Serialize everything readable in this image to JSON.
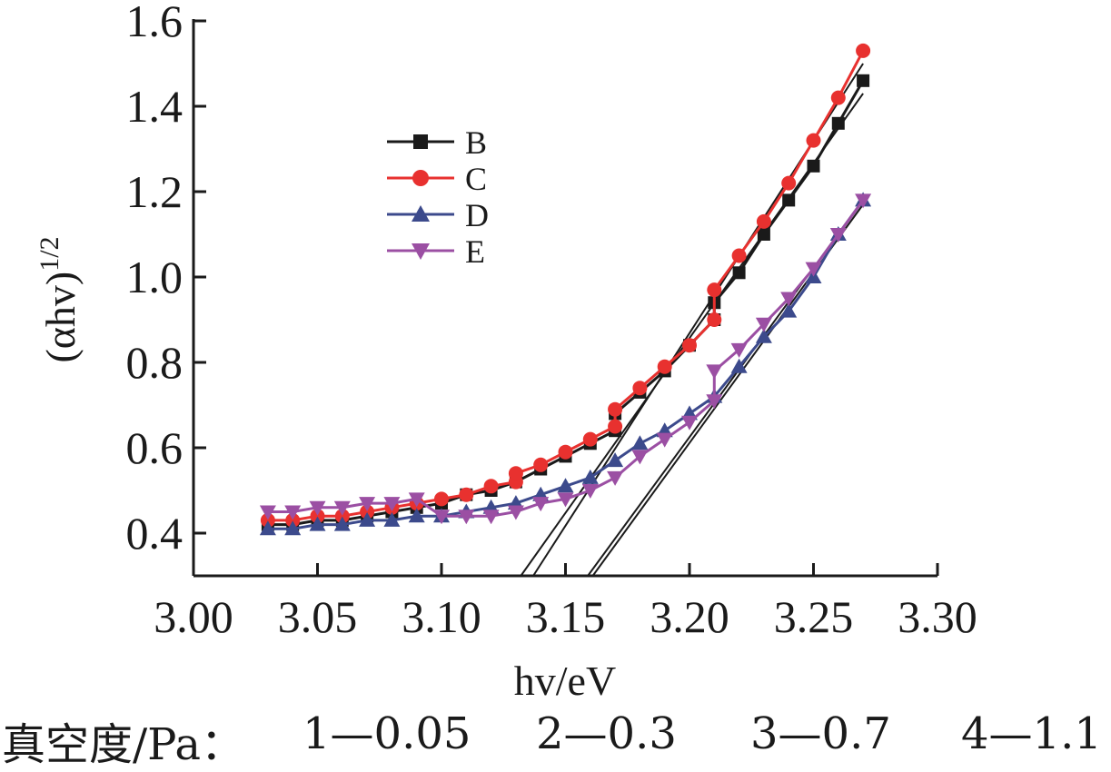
{
  "chart_data": {
    "type": "line",
    "xlabel": "hv/eV",
    "ylabel": "(αhv)",
    "ylabel_sup": "1/2",
    "xlim": [
      3.0,
      3.3
    ],
    "ylim": [
      0.3,
      1.6
    ],
    "x_ticks": [
      "3.00",
      "3.05",
      "3.10",
      "3.15",
      "3.20",
      "3.25",
      "3.30"
    ],
    "y_ticks": [
      "0.4",
      "0.6",
      "0.8",
      "1.0",
      "1.2",
      "1.4",
      "1.6"
    ],
    "legend_position": "upper-left",
    "series": [
      {
        "name": "B",
        "color": "#1a1a1a",
        "marker": "square",
        "x": [
          3.03,
          3.04,
          3.05,
          3.06,
          3.07,
          3.08,
          3.09,
          3.1,
          3.11,
          3.12,
          3.13,
          3.14,
          3.15,
          3.16,
          3.17,
          3.17,
          3.18,
          3.19,
          3.2,
          3.21,
          3.21,
          3.22,
          3.23,
          3.24,
          3.25,
          3.26,
          3.27
        ],
        "y": [
          0.42,
          0.42,
          0.43,
          0.43,
          0.44,
          0.45,
          0.46,
          0.47,
          0.49,
          0.5,
          0.52,
          0.55,
          0.58,
          0.61,
          0.64,
          0.68,
          0.73,
          0.78,
          0.84,
          0.9,
          0.94,
          1.01,
          1.1,
          1.18,
          1.26,
          1.36,
          1.46
        ]
      },
      {
        "name": "C",
        "color": "#e8312f",
        "marker": "circle",
        "x": [
          3.03,
          3.04,
          3.05,
          3.06,
          3.07,
          3.08,
          3.09,
          3.1,
          3.11,
          3.12,
          3.13,
          3.13,
          3.14,
          3.15,
          3.16,
          3.17,
          3.17,
          3.18,
          3.19,
          3.2,
          3.21,
          3.21,
          3.22,
          3.23,
          3.24,
          3.25,
          3.26,
          3.27
        ],
        "y": [
          0.43,
          0.43,
          0.44,
          0.44,
          0.45,
          0.46,
          0.47,
          0.48,
          0.49,
          0.51,
          0.52,
          0.54,
          0.56,
          0.59,
          0.62,
          0.65,
          0.69,
          0.74,
          0.79,
          0.84,
          0.9,
          0.97,
          1.05,
          1.13,
          1.22,
          1.32,
          1.42,
          1.53
        ]
      },
      {
        "name": "D",
        "color": "#3c4a8c",
        "marker": "triangle-up",
        "x": [
          3.03,
          3.04,
          3.05,
          3.06,
          3.07,
          3.08,
          3.09,
          3.1,
          3.11,
          3.12,
          3.13,
          3.14,
          3.15,
          3.16,
          3.17,
          3.18,
          3.19,
          3.2,
          3.21,
          3.22,
          3.23,
          3.24,
          3.25,
          3.26,
          3.27
        ],
        "y": [
          0.41,
          0.41,
          0.42,
          0.42,
          0.43,
          0.43,
          0.44,
          0.44,
          0.45,
          0.46,
          0.47,
          0.49,
          0.51,
          0.53,
          0.57,
          0.61,
          0.64,
          0.68,
          0.72,
          0.79,
          0.86,
          0.92,
          1.0,
          1.1,
          1.18
        ]
      },
      {
        "name": "E",
        "color": "#9b4fa3",
        "marker": "triangle-down",
        "x": [
          3.03,
          3.04,
          3.05,
          3.06,
          3.07,
          3.08,
          3.09,
          3.1,
          3.11,
          3.12,
          3.13,
          3.14,
          3.15,
          3.16,
          3.17,
          3.18,
          3.19,
          3.2,
          3.21,
          3.21,
          3.22,
          3.23,
          3.24,
          3.25,
          3.26,
          3.27
        ],
        "y": [
          0.45,
          0.45,
          0.46,
          0.46,
          0.47,
          0.47,
          0.48,
          0.44,
          0.44,
          0.44,
          0.45,
          0.47,
          0.48,
          0.5,
          0.53,
          0.58,
          0.62,
          0.66,
          0.71,
          0.78,
          0.83,
          0.89,
          0.95,
          1.02,
          1.1,
          1.18
        ]
      }
    ],
    "fit_lines": [
      {
        "color": "#1a1a1a",
        "x": [
          3.132,
          3.27
        ],
        "y": [
          0.3,
          1.43
        ]
      },
      {
        "color": "#1a1a1a",
        "x": [
          3.137,
          3.27
        ],
        "y": [
          0.3,
          1.5
        ]
      },
      {
        "color": "#1a1a1a",
        "x": [
          3.159,
          3.27
        ],
        "y": [
          0.3,
          1.18
        ]
      },
      {
        "color": "#1a1a1a",
        "x": [
          3.161,
          3.27
        ],
        "y": [
          0.3,
          1.17
        ]
      }
    ]
  },
  "caption": {
    "label": "真空度/Pa：",
    "items": [
      "1—0.05",
      "2—0.3",
      "3—0.7",
      "4—1.1"
    ]
  }
}
